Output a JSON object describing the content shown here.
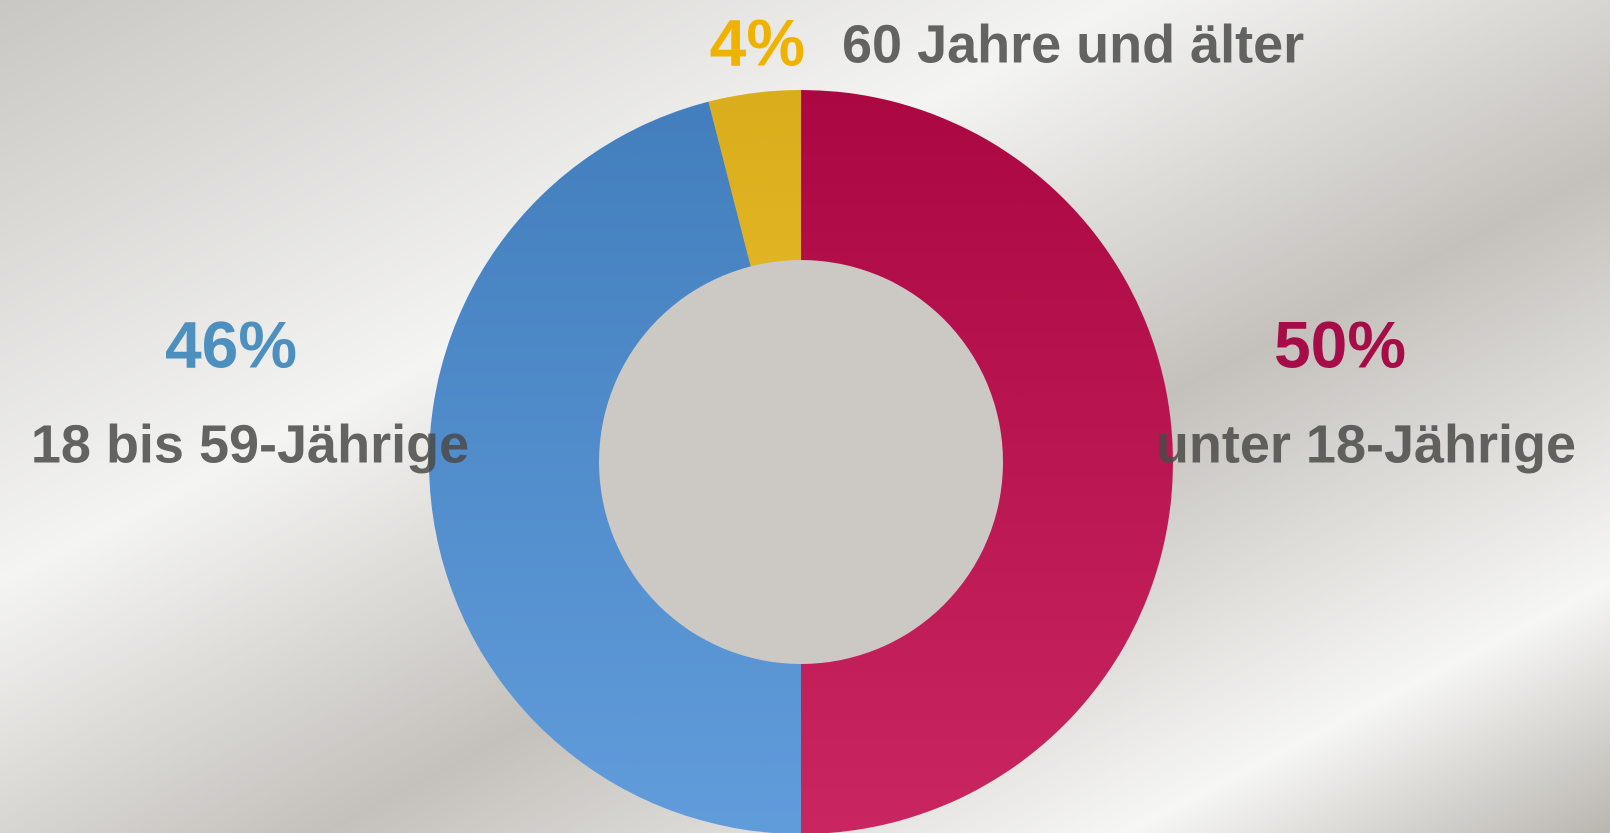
{
  "chart_data": {
    "type": "donut",
    "categories": [
      "unter 18-Jährige",
      "18 bis 59-Jährige",
      "60 Jahre und älter"
    ],
    "values": [
      50,
      46,
      4
    ],
    "value_labels": [
      "50%",
      "46%",
      "4%"
    ],
    "colors": [
      "#c2084b",
      "#4b8ed6",
      "#f6c41f"
    ]
  }
}
